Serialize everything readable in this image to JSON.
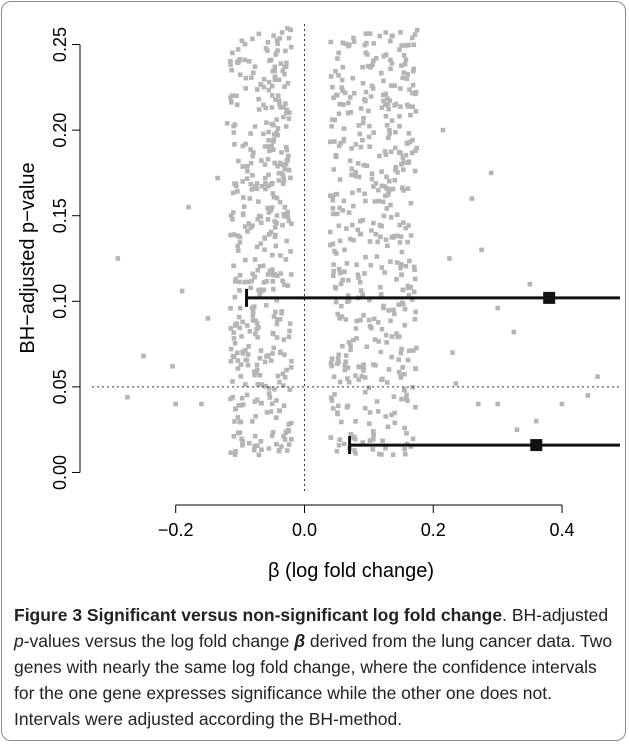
{
  "chart_data": {
    "type": "scatter",
    "xlabel": "β (log fold change)",
    "ylabel": "BH−adjusted p−value",
    "xlim": [
      -0.33,
      0.49
    ],
    "ylim": [
      -0.012,
      0.262
    ],
    "x_ticks": [
      -0.2,
      0.0,
      0.2,
      0.4
    ],
    "x_tick_labels": [
      "−0.2",
      "0.0",
      "0.2",
      "0.4"
    ],
    "y_ticks": [
      0.0,
      0.05,
      0.1,
      0.15,
      0.2,
      0.25
    ],
    "y_tick_labels": [
      "0.00",
      "0.05",
      "0.10",
      "0.15",
      "0.20",
      "0.25"
    ],
    "reference_lines": [
      {
        "orientation": "vertical",
        "value": 0.0,
        "style": "dotted"
      },
      {
        "orientation": "horizontal",
        "value": 0.05,
        "style": "dotted"
      }
    ],
    "point_color": "#b5b5b5",
    "interval_color": "#111111",
    "point_clusters": [
      {
        "x_min": -0.115,
        "x_max": -0.02,
        "y_min": 0.01,
        "y_max": 0.26,
        "count": 430
      },
      {
        "x_min": 0.04,
        "x_max": 0.175,
        "y_min": 0.01,
        "y_max": 0.26,
        "count": 470
      }
    ],
    "scattered_points": [
      {
        "x": -0.29,
        "y": 0.125
      },
      {
        "x": -0.25,
        "y": 0.068
      },
      {
        "x": -0.275,
        "y": 0.044
      },
      {
        "x": -0.2,
        "y": 0.04
      },
      {
        "x": -0.19,
        "y": 0.106
      },
      {
        "x": -0.16,
        "y": 0.04
      },
      {
        "x": -0.135,
        "y": 0.172
      },
      {
        "x": -0.12,
        "y": 0.204
      },
      {
        "x": -0.18,
        "y": 0.155
      },
      {
        "x": -0.15,
        "y": 0.09
      },
      {
        "x": -0.205,
        "y": 0.062
      },
      {
        "x": 0.235,
        "y": 0.052
      },
      {
        "x": 0.27,
        "y": 0.04
      },
      {
        "x": 0.3,
        "y": 0.04
      },
      {
        "x": 0.33,
        "y": 0.025
      },
      {
        "x": 0.36,
        "y": 0.03
      },
      {
        "x": 0.4,
        "y": 0.04
      },
      {
        "x": 0.455,
        "y": 0.056
      },
      {
        "x": 0.44,
        "y": 0.045
      },
      {
        "x": 0.29,
        "y": 0.175
      },
      {
        "x": 0.3,
        "y": 0.096
      },
      {
        "x": 0.325,
        "y": 0.082
      },
      {
        "x": 0.275,
        "y": 0.13
      },
      {
        "x": 0.35,
        "y": 0.11
      },
      {
        "x": 0.26,
        "y": 0.16
      },
      {
        "x": 0.23,
        "y": 0.07
      },
      {
        "x": 0.225,
        "y": 0.125
      },
      {
        "x": 0.215,
        "y": 0.2
      }
    ],
    "confidence_intervals": [
      {
        "estimate": 0.38,
        "lower": -0.09,
        "upper": 0.49,
        "p_value": 0.102
      },
      {
        "estimate": 0.36,
        "lower": 0.07,
        "upper": 0.49,
        "p_value": 0.016
      }
    ]
  },
  "caption": {
    "title": "Figure 3 Significant versus non-significant log fold change",
    "part1": ". BH-adjusted ",
    "p_symbol": "p",
    "part2": "-values versus the log fold change ",
    "beta_symbol": "β",
    "part3": " derived from the lung cancer data. Two genes with nearly the same log fold change, where the confidence intervals for the one gene expresses significance while the other one does not. Intervals were adjusted according the BH-method."
  }
}
